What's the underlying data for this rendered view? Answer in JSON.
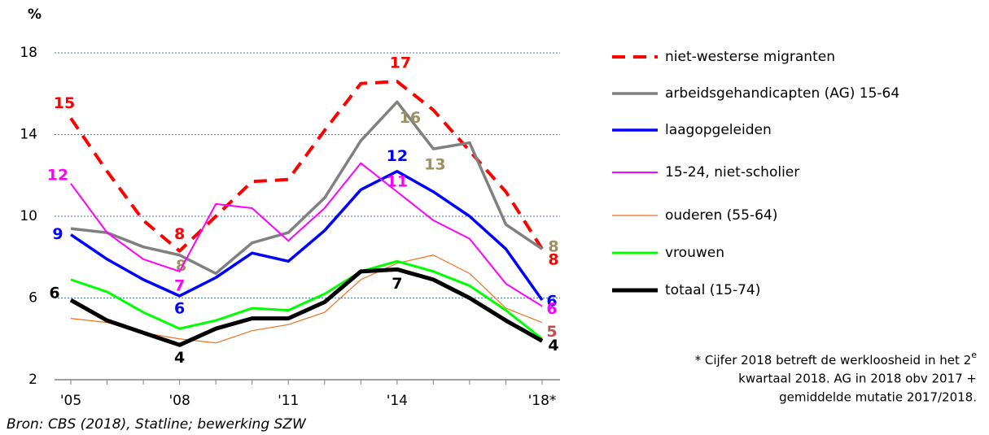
{
  "chart_data": {
    "type": "line",
    "y_label": "%",
    "categories": [
      "'05",
      null,
      null,
      "'08",
      null,
      null,
      "'11",
      null,
      null,
      "'14",
      null,
      null,
      null,
      "'18*"
    ],
    "ylim": [
      2,
      18
    ],
    "yticks": [
      2,
      6,
      10,
      14,
      18
    ],
    "grid": true,
    "series": [
      {
        "name": "niet-westerse migranten",
        "color": "#ff0000",
        "label_color": "#ff0000",
        "dashed": true,
        "width": 4,
        "values": [
          14.8,
          12.2,
          9.8,
          8.3,
          10.0,
          11.7,
          11.8,
          14.2,
          16.5,
          16.6,
          15.2,
          13.2,
          11.2,
          8.4
        ],
        "value_labels": [
          "15",
          null,
          null,
          "8",
          null,
          null,
          null,
          null,
          null,
          "17",
          null,
          null,
          null,
          "8"
        ]
      },
      {
        "name": "arbeidsgehandicapten (AG) 15-64",
        "color": "#808080",
        "label_color": "#9c9060",
        "width": 3.5,
        "values": [
          9.4,
          9.2,
          8.5,
          8.1,
          7.2,
          8.7,
          9.2,
          10.9,
          13.7,
          15.6,
          13.3,
          13.6,
          9.6,
          8.4
        ],
        "value_labels": [
          null,
          null,
          null,
          "8",
          null,
          null,
          null,
          null,
          null,
          "16",
          "13",
          null,
          null,
          "8"
        ]
      },
      {
        "name": "laagopgeleiden",
        "color": "#0000ff",
        "label_color": "#0000ff",
        "width": 3.5,
        "values": [
          9.1,
          7.9,
          6.9,
          6.1,
          7.0,
          8.2,
          7.8,
          9.3,
          11.3,
          12.2,
          11.2,
          10.0,
          8.4,
          5.9
        ],
        "value_labels": [
          "9",
          null,
          null,
          "6",
          null,
          null,
          null,
          null,
          null,
          "12",
          null,
          null,
          null,
          "6"
        ]
      },
      {
        "name": "15-24, niet-scholier",
        "color": "#ff00ff",
        "label_color": "#ff00ff",
        "width": 2,
        "values": [
          11.6,
          9.2,
          7.9,
          7.3,
          10.6,
          10.4,
          8.8,
          10.4,
          12.6,
          11.2,
          9.8,
          8.9,
          6.7,
          5.6
        ],
        "value_labels": [
          "12",
          null,
          null,
          "7",
          null,
          null,
          null,
          null,
          null,
          "11",
          null,
          null,
          null,
          "6"
        ]
      },
      {
        "name": "ouderen (55-64)",
        "color": "#f07020",
        "label_color": "#c0504d",
        "width": 1.2,
        "values": [
          5.0,
          4.8,
          4.3,
          4.0,
          3.8,
          4.4,
          4.7,
          5.3,
          6.9,
          7.7,
          8.1,
          7.2,
          5.5,
          4.8
        ],
        "value_labels": [
          null,
          null,
          null,
          null,
          null,
          null,
          null,
          null,
          null,
          null,
          null,
          null,
          null,
          "5"
        ]
      },
      {
        "name": "vrouwen",
        "color": "#00ff00",
        "label_color": "#00ff00",
        "width": 3,
        "values": [
          6.9,
          6.3,
          5.3,
          4.5,
          4.9,
          5.5,
          5.4,
          6.2,
          7.3,
          7.8,
          7.3,
          6.6,
          5.4,
          4.0
        ]
      },
      {
        "name": "totaal (15-74)",
        "color": "#000000",
        "label_color": "#000000",
        "width": 5,
        "values": [
          5.9,
          4.9,
          4.3,
          3.7,
          4.5,
          5.0,
          5.0,
          5.8,
          7.3,
          7.4,
          6.9,
          6.0,
          4.9,
          3.9
        ],
        "value_labels": [
          "6",
          null,
          null,
          "4",
          null,
          null,
          null,
          null,
          null,
          "7",
          null,
          null,
          null,
          "4"
        ]
      }
    ],
    "footnote": {
      "line1": "* Cijfer 2018 betreft de werkloosheid in het 2",
      "sup": "e",
      "line2": "kwartaal 2018. AG in 2018 obv 2017 +",
      "line3": "gemiddelde mutatie 2017/2018."
    },
    "source": "Bron: CBS (2018), Statline; bewerking SZW"
  }
}
